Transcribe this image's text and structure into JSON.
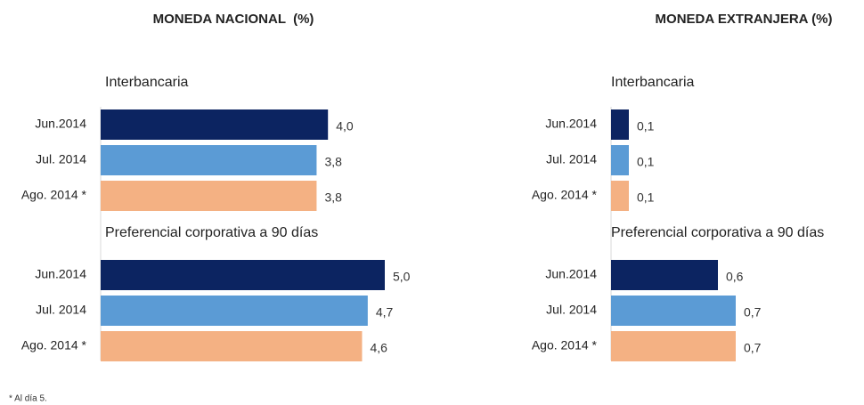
{
  "chart_data": [
    {
      "type": "bar",
      "orientation": "horizontal",
      "title": "MONEDA NACIONAL  (%)",
      "colors": [
        "#0c2461",
        "#5b9bd5",
        "#f4b183"
      ],
      "xlim": [
        0,
        5
      ],
      "groups": [
        {
          "label": "Interbancaria",
          "categories": [
            "Jun.2014",
            "Jul. 2014",
            "Ago. 2014 *"
          ],
          "values": [
            4.0,
            3.8,
            3.8
          ],
          "value_labels": [
            "4,0",
            "3,8",
            "3,8"
          ]
        },
        {
          "label": "Preferencial corporativa a 90 días",
          "categories": [
            "Jun.2014",
            "Jul. 2014",
            "Ago. 2014 *"
          ],
          "values": [
            5.0,
            4.7,
            4.6
          ],
          "value_labels": [
            "5,0",
            "4,7",
            "4,6"
          ]
        }
      ]
    },
    {
      "type": "bar",
      "orientation": "horizontal",
      "title": "MONEDA EXTRANJERA (%)",
      "colors": [
        "#0c2461",
        "#5b9bd5",
        "#f4b183"
      ],
      "xlim": [
        0,
        0.7
      ],
      "groups": [
        {
          "label": "Interbancaria",
          "categories": [
            "Jun.2014",
            "Jul. 2014",
            "Ago. 2014 *"
          ],
          "values": [
            0.1,
            0.1,
            0.1
          ],
          "value_labels": [
            "0,1",
            "0,1",
            "0,1"
          ]
        },
        {
          "label": "Preferencial corporativa a 90 días",
          "categories": [
            "Jun.2014",
            "Jul. 2014",
            "Ago. 2014 *"
          ],
          "values": [
            0.6,
            0.7,
            0.7
          ],
          "value_labels": [
            "0,6",
            "0,7",
            "0,7"
          ]
        }
      ]
    }
  ],
  "footnote": "* Al día 5."
}
